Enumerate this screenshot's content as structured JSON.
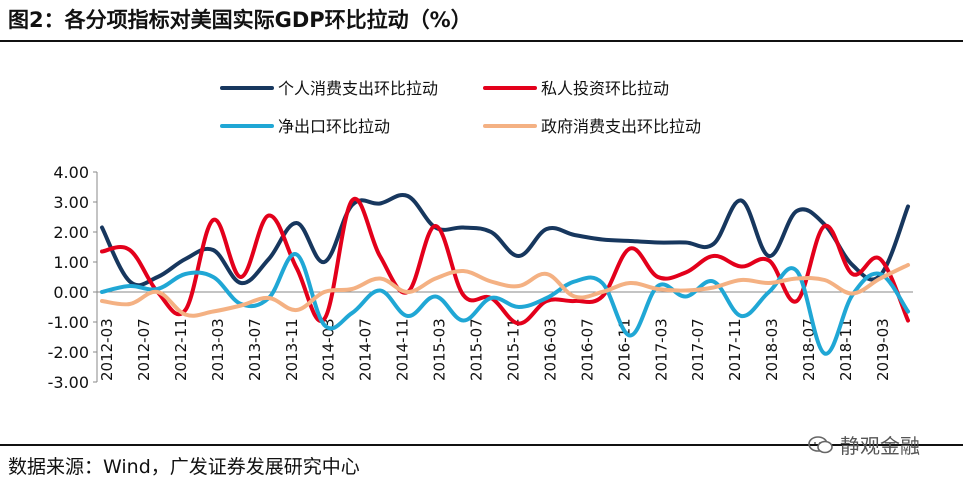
{
  "header": {
    "title": "图2：各分项指标对美国实际GDP环比拉动（%）"
  },
  "footer": {
    "source": "数据来源：Wind，广发证券发展研究中心",
    "watermark": "静观金融"
  },
  "chart_data": {
    "type": "line",
    "title": "图2：各分项指标对美国实际GDP环比拉动（%）",
    "ylim": [
      -3.0,
      4.0
    ],
    "yticks": [
      "4.00",
      "3.00",
      "2.00",
      "1.00",
      "0.00",
      "-1.00",
      "-2.00",
      "-3.00"
    ],
    "x_tick_labels": [
      "2012-03",
      "2012-07",
      "2012-11",
      "2013-03",
      "2013-07",
      "2013-11",
      "2014-03",
      "2014-07",
      "2014-11",
      "2015-03",
      "2015-07",
      "2015-11",
      "2016-03",
      "2016-07",
      "2016-11",
      "2017-03",
      "2017-07",
      "2017-11",
      "2018-03",
      "2018-07",
      "2018-11",
      "2019-03"
    ],
    "categories": [
      "2012Q1",
      "2012Q2",
      "2012Q3",
      "2012Q4",
      "2013Q1",
      "2013Q2",
      "2013Q3",
      "2013Q4",
      "2014Q1",
      "2014Q2",
      "2014Q3",
      "2014Q4",
      "2015Q1",
      "2015Q2",
      "2015Q3",
      "2015Q4",
      "2016Q1",
      "2016Q2",
      "2016Q3",
      "2016Q4",
      "2017Q1",
      "2017Q2",
      "2017Q3",
      "2017Q4",
      "2018Q1",
      "2018Q2",
      "2018Q3",
      "2018Q4",
      "2019Q1",
      "2019Q2"
    ],
    "series": [
      {
        "name": "个人消费支出环比拉动",
        "color": "#17375e",
        "values": [
          2.15,
          0.35,
          0.5,
          1.1,
          1.4,
          0.3,
          1.1,
          2.3,
          1.0,
          2.9,
          2.95,
          3.2,
          2.15,
          2.15,
          2.0,
          1.2,
          2.1,
          1.9,
          1.75,
          1.7,
          1.65,
          1.65,
          1.6,
          3.05,
          1.2,
          2.7,
          2.25,
          0.9,
          0.55,
          2.85
        ]
      },
      {
        "name": "私人投资环比拉动",
        "color": "#e3001b",
        "values": [
          1.35,
          1.4,
          0.0,
          -0.6,
          2.4,
          0.5,
          2.55,
          0.8,
          -0.9,
          3.05,
          1.2,
          0.0,
          2.2,
          -0.1,
          -0.2,
          -1.05,
          -0.3,
          -0.3,
          -0.15,
          1.45,
          0.5,
          0.65,
          1.2,
          0.85,
          1.05,
          -0.3,
          2.2,
          0.6,
          1.1,
          -0.95
        ]
      },
      {
        "name": "净出口环比拉动",
        "color": "#20a7d5",
        "values": [
          0.0,
          0.2,
          0.1,
          0.6,
          0.5,
          -0.4,
          -0.2,
          1.25,
          -1.1,
          -0.7,
          0.05,
          -0.8,
          -0.15,
          -0.95,
          -0.2,
          -0.5,
          -0.2,
          0.35,
          0.3,
          -1.45,
          0.2,
          -0.15,
          0.35,
          -0.8,
          0.0,
          0.7,
          -2.05,
          -0.1,
          0.6,
          -0.65
        ]
      },
      {
        "name": "政府消费支出环比拉动",
        "color": "#f4b183",
        "values": [
          -0.3,
          -0.4,
          0.0,
          -0.75,
          -0.65,
          -0.45,
          -0.2,
          -0.6,
          0.0,
          0.1,
          0.45,
          0.0,
          0.45,
          0.7,
          0.35,
          0.2,
          0.6,
          -0.15,
          0.0,
          0.3,
          0.1,
          0.05,
          0.15,
          0.4,
          0.3,
          0.45,
          0.4,
          -0.05,
          0.45,
          0.9
        ]
      }
    ],
    "legend": {
      "placement": "top",
      "columns": 2
    },
    "grid": false
  }
}
